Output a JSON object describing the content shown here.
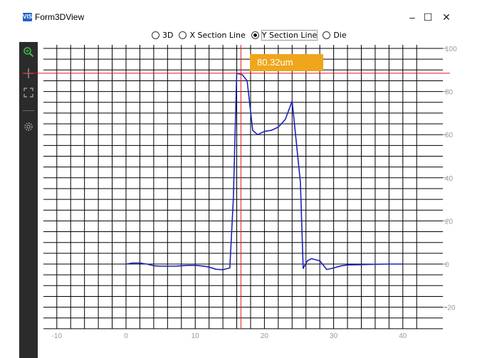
{
  "window": {
    "title": "Form3DView",
    "app_icon": "VIS",
    "controls": {
      "minimize": "–",
      "maximize": "☐",
      "close": "✕"
    }
  },
  "view_modes": {
    "options": [
      {
        "label": "3D",
        "checked": false
      },
      {
        "label": "X Section Line",
        "checked": false
      },
      {
        "label": "Y Section Line",
        "checked": true
      },
      {
        "label": "Die",
        "checked": false
      }
    ]
  },
  "toolbar": {
    "tools": [
      "zoom-icon",
      "crosshair-icon",
      "fit-view-icon",
      "settings-icon"
    ]
  },
  "readout": {
    "text": "80.32um"
  },
  "colors": {
    "series": "#1b22b8",
    "cursor": "#e0191e",
    "readout_bg": "#efa61c",
    "toolbar_bg": "#2b2b2b",
    "grid": "#000000"
  },
  "chart_data": {
    "type": "line",
    "title": "",
    "xlabel": "",
    "ylabel": "",
    "xlim": [
      -12,
      43.5
    ],
    "ylim": [
      -30,
      102
    ],
    "x_ticks": [
      -10,
      0,
      10,
      20,
      30,
      40
    ],
    "y_ticks": [
      100,
      80,
      60,
      40,
      20,
      0,
      -20
    ],
    "x_tick_labels": [
      "-10",
      "0",
      "10",
      "20",
      "30",
      "40"
    ],
    "y_tick_labels": [
      "100",
      "80",
      "60",
      "40",
      "20",
      "0",
      "-20"
    ],
    "grid": true,
    "cursor": {
      "x": 16.6,
      "y": 88.5
    },
    "series": [
      {
        "x": [
          0,
          1,
          2,
          3,
          4,
          5,
          6,
          7,
          8,
          9,
          10,
          11,
          12,
          13,
          14,
          15,
          15.5,
          16,
          16.8,
          17.5,
          18.3,
          19,
          20,
          21,
          22,
          23,
          24,
          25.2,
          25.6,
          26.2,
          26.8,
          28,
          29,
          30,
          31,
          32,
          34,
          36,
          38,
          40
        ],
        "y": [
          0,
          0.5,
          0.5,
          0,
          -0.8,
          -1,
          -1,
          -1,
          -0.8,
          -0.6,
          -0.6,
          -0.9,
          -1.4,
          -2.4,
          -2.6,
          -1.8,
          30,
          88.5,
          87.8,
          85,
          62,
          60,
          61.5,
          62,
          63.5,
          67,
          75.5,
          38,
          -2,
          1.5,
          2.5,
          1.5,
          -2.5,
          -1.8,
          -0.9,
          -0.4,
          -0.3,
          -0.1,
          0,
          0
        ]
      }
    ]
  }
}
